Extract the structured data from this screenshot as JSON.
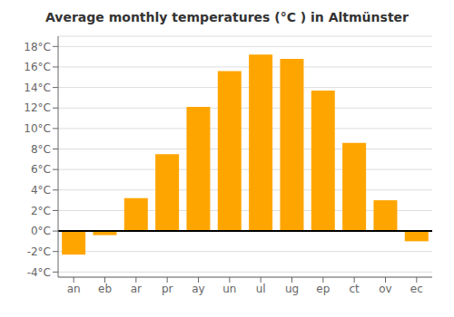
{
  "chart_data": {
    "type": "bar",
    "title": "Average monthly temperatures (°C ) in Altmünster",
    "categories": [
      "an",
      "eb",
      "ar",
      "pr",
      "ay",
      "un",
      "ul",
      "ug",
      "ep",
      "ct",
      "ov",
      "ec"
    ],
    "values": [
      -2.3,
      -0.4,
      3.2,
      7.5,
      12.1,
      15.6,
      17.2,
      16.8,
      13.7,
      8.6,
      3.0,
      -1.0
    ],
    "color": "#FFA500",
    "ylim": [
      -4.5,
      19
    ],
    "yticks": [
      {
        "value": -4,
        "label": "-4°C"
      },
      {
        "value": -2,
        "label": "-2°C"
      },
      {
        "value": 0,
        "label": "0°C"
      },
      {
        "value": 2,
        "label": "2°C"
      },
      {
        "value": 4,
        "label": "4°C"
      },
      {
        "value": 6,
        "label": "6°C"
      },
      {
        "value": 8,
        "label": "8°C"
      },
      {
        "value": 10,
        "label": "10°C"
      },
      {
        "value": 12,
        "label": "12°C"
      },
      {
        "value": 14,
        "label": "14°C"
      },
      {
        "value": 16,
        "label": "16°C"
      },
      {
        "value": 18,
        "label": "18°C"
      }
    ],
    "grid": true
  }
}
